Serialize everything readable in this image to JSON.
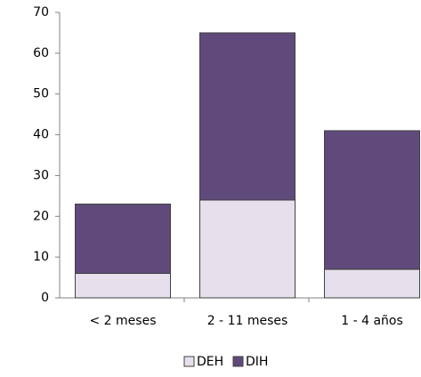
{
  "chart_data": {
    "type": "stacked-bar",
    "categories": [
      "< 2 meses",
      "2 - 11 meses",
      "1 - 4 años"
    ],
    "series": [
      {
        "name": "DEH",
        "color": "#e6e0ec",
        "values": [
          6,
          24,
          7
        ]
      },
      {
        "name": "DIH",
        "color": "#604a7b",
        "values": [
          17,
          41,
          34
        ]
      }
    ],
    "ylim": [
      0,
      70
    ],
    "yticks": [
      0,
      10,
      20,
      30,
      40,
      50,
      60,
      70
    ],
    "grid": false,
    "legend": "bottom"
  }
}
